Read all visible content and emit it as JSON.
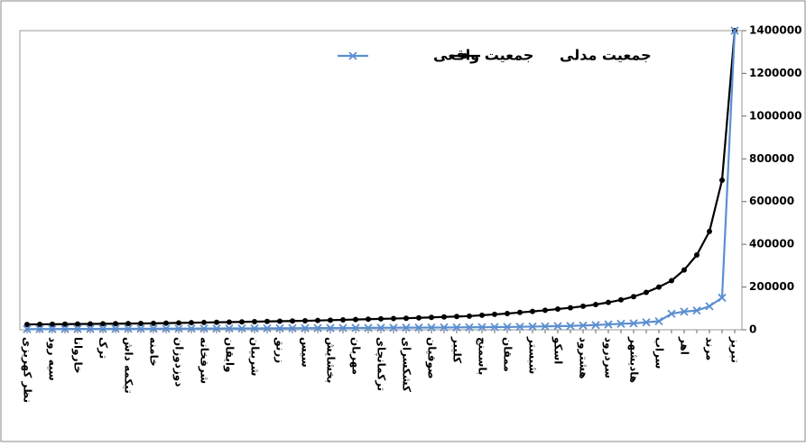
{
  "chart_data": {
    "type": "line",
    "categories": [
      "نظر کهریزی",
      null,
      "سیه رود",
      null,
      "خاروانا",
      null,
      "ترک",
      null,
      "تیکمه داش",
      null,
      "خامنه",
      null,
      "دوزدوزان",
      null,
      "شرفخانه",
      null,
      "وایقان",
      null,
      "شربیان",
      null,
      "زرنق",
      null,
      "سیس",
      null,
      "بخشایش",
      null,
      "مهربان",
      null,
      "ترکمانچای",
      null,
      "کشکسرای",
      null,
      "صوفیان",
      null,
      "کلیبر",
      null,
      "باسمنج",
      null,
      "ممقان",
      null,
      "شبستر",
      null,
      "اسکو",
      null,
      "هشترود",
      null,
      "سردرود",
      null,
      "هادیشهر",
      null,
      "سراب",
      null,
      "اهر",
      null,
      "مرند",
      null,
      "تبریز"
    ],
    "series": [
      {
        "name": "جمعیت مدلی",
        "color": "#000000",
        "marker": "circle",
        "values": [
          25000,
          25500,
          26000,
          26500,
          27000,
          27500,
          28000,
          28500,
          29000,
          29500,
          30000,
          31000,
          32000,
          33000,
          34000,
          35000,
          36000,
          37000,
          38000,
          39000,
          40000,
          41000,
          42000,
          43500,
          45000,
          46500,
          48000,
          49500,
          51000,
          52500,
          54000,
          56000,
          58000,
          60000,
          62000,
          64000,
          68000,
          72000,
          76000,
          81000,
          86000,
          91000,
          97000,
          103000,
          110000,
          118000,
          128000,
          140000,
          155000,
          175000,
          200000,
          230000,
          280000,
          350000,
          460000,
          700000,
          1400000
        ]
      },
      {
        "name": "جمعیت واقعی",
        "color": "#5b8fd0",
        "marker": "x",
        "values": [
          3000,
          3200,
          3400,
          3600,
          3800,
          4000,
          4200,
          4400,
          4600,
          4800,
          5000,
          5200,
          5400,
          5600,
          5800,
          6000,
          6200,
          6400,
          6600,
          6800,
          7000,
          7300,
          7600,
          7900,
          8200,
          8500,
          8800,
          9100,
          9400,
          9700,
          10000,
          10300,
          10600,
          10900,
          11200,
          11500,
          12000,
          12500,
          13000,
          14000,
          15000,
          16000,
          17000,
          18000,
          20000,
          22000,
          25000,
          28000,
          30000,
          35000,
          40000,
          75000,
          85000,
          90000,
          110000,
          150000,
          1400000
        ]
      }
    ],
    "ylim": [
      0,
      1400000
    ],
    "yticks": [
      0,
      200000,
      400000,
      600000,
      800000,
      1000000,
      1200000,
      1400000
    ],
    "grid": false
  }
}
